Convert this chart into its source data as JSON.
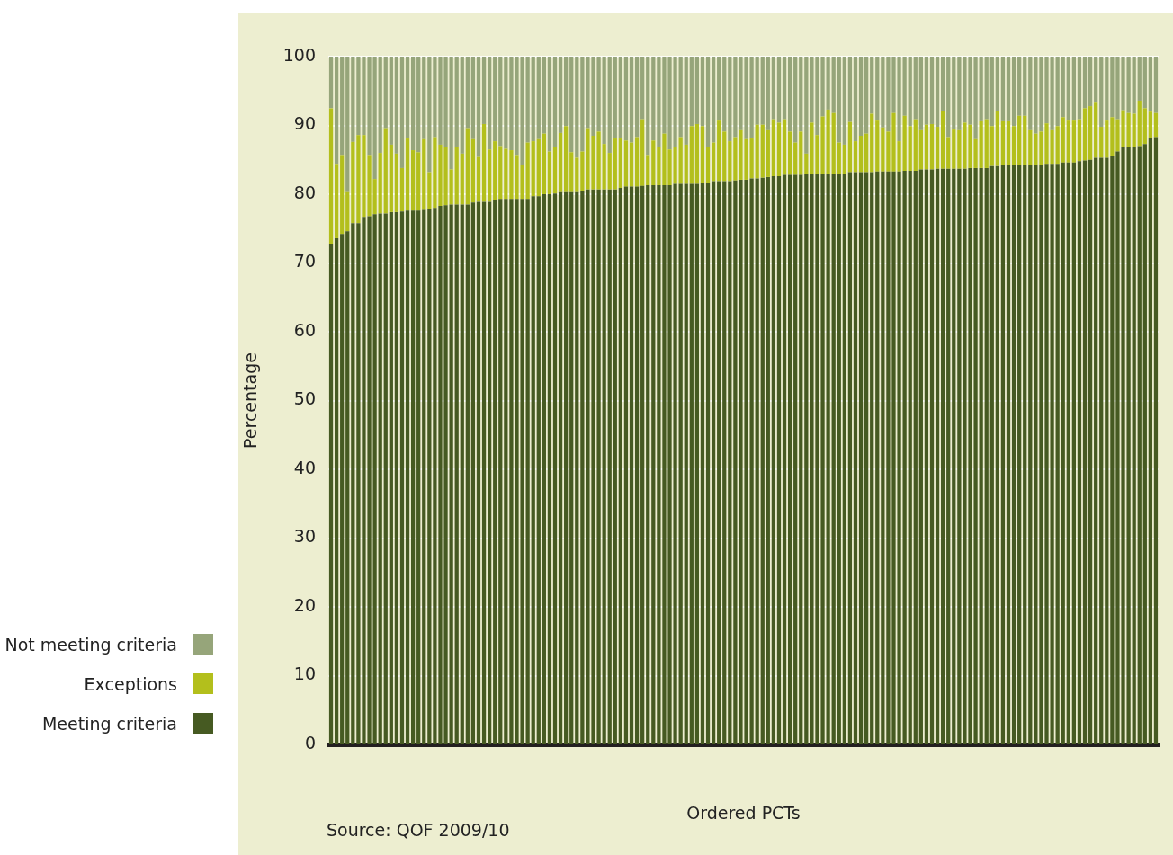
{
  "chart_data": {
    "type": "bar",
    "stacked": true,
    "xlabel": "Ordered PCTs",
    "ylabel": "Percentage",
    "annotations": [
      "Source: QOF 2009/10"
    ],
    "categories": [
      null,
      null,
      null,
      null,
      null,
      null,
      null,
      null,
      null,
      null,
      null,
      null,
      null,
      null,
      null,
      null,
      null,
      null,
      null,
      null,
      null,
      null,
      null,
      null,
      null,
      null,
      null,
      null,
      null,
      null,
      null,
      null,
      null,
      null,
      null,
      null,
      null,
      null,
      null,
      null,
      null,
      null,
      null,
      null,
      null,
      null,
      null,
      null,
      null,
      null,
      null,
      null,
      null,
      null,
      null,
      null,
      null,
      null,
      null,
      null,
      null,
      null,
      null,
      null,
      null,
      null,
      null,
      null,
      null,
      null,
      null,
      null,
      null,
      null,
      null,
      null,
      null,
      null,
      null,
      null,
      null,
      null,
      null,
      null,
      null,
      null,
      null,
      null,
      null,
      null,
      null,
      null,
      null,
      null,
      null,
      null,
      null,
      null,
      null,
      null,
      null,
      null,
      null,
      null,
      null,
      null,
      null,
      null,
      null,
      null,
      null,
      null,
      null,
      null,
      null,
      null,
      null,
      null,
      null,
      null,
      null,
      null,
      null,
      null,
      null,
      null,
      null,
      null,
      null,
      null,
      null,
      null,
      null,
      null,
      null,
      null,
      null,
      null,
      null,
      null,
      null,
      null,
      null,
      null,
      null,
      null,
      null,
      null,
      null,
      null,
      null,
      null
    ],
    "series": [
      {
        "name": "Meeting criteria",
        "color": "#465a22",
        "values": [
          72.8,
          73.6,
          74.2,
          74.6,
          75.8,
          75.8,
          76.7,
          76.8,
          77.1,
          77.2,
          77.2,
          77.4,
          77.4,
          77.5,
          77.6,
          77.6,
          77.6,
          77.7,
          77.9,
          78.0,
          78.3,
          78.4,
          78.5,
          78.5,
          78.5,
          78.5,
          78.8,
          78.9,
          78.9,
          78.9,
          79.2,
          79.3,
          79.3,
          79.3,
          79.3,
          79.3,
          79.3,
          79.7,
          79.7,
          80.0,
          80.0,
          80.1,
          80.3,
          80.3,
          80.3,
          80.3,
          80.4,
          80.7,
          80.7,
          80.7,
          80.7,
          80.7,
          80.7,
          80.9,
          81.1,
          81.1,
          81.1,
          81.2,
          81.3,
          81.3,
          81.3,
          81.3,
          81.3,
          81.5,
          81.5,
          81.5,
          81.5,
          81.5,
          81.7,
          81.7,
          81.9,
          81.9,
          81.9,
          81.9,
          82.0,
          82.1,
          82.1,
          82.3,
          82.3,
          82.4,
          82.5,
          82.6,
          82.6,
          82.8,
          82.8,
          82.8,
          82.8,
          82.9,
          83.0,
          83.0,
          83.0,
          83.0,
          83.0,
          83.0,
          83.0,
          83.2,
          83.2,
          83.2,
          83.2,
          83.2,
          83.3,
          83.3,
          83.3,
          83.3,
          83.3,
          83.4,
          83.4,
          83.4,
          83.6,
          83.6,
          83.6,
          83.7,
          83.7,
          83.7,
          83.7,
          83.7,
          83.7,
          83.8,
          83.8,
          83.8,
          83.8,
          84.1,
          84.1,
          84.2,
          84.2,
          84.2,
          84.2,
          84.2,
          84.2,
          84.2,
          84.2,
          84.4,
          84.4,
          84.4,
          84.6,
          84.6,
          84.6,
          84.8,
          84.9,
          85.0,
          85.3,
          85.3,
          85.3,
          85.6,
          86.2,
          86.8,
          86.8,
          86.8,
          87.0,
          87.3,
          88.2,
          88.3
        ]
      },
      {
        "name": "Exceptions",
        "color": "#b3bf1c",
        "values": [
          19.7,
          10.8,
          11.5,
          5.7,
          11.8,
          12.8,
          11.9,
          8.9,
          5.1,
          8.8,
          12.4,
          9.8,
          8.5,
          6.3,
          10.5,
          8.8,
          8.5,
          10.3,
          5.3,
          10.3,
          8.9,
          8.4,
          5.1,
          8.3,
          7.4,
          11.1,
          9.2,
          6.5,
          11.3,
          7.6,
          8.5,
          7.7,
          7.3,
          7.1,
          6.4,
          5.0,
          8.2,
          8.0,
          8.3,
          8.8,
          6.2,
          6.7,
          8.6,
          9.6,
          5.8,
          5.0,
          5.8,
          8.9,
          7.8,
          8.4,
          6.6,
          5.3,
          7.4,
          7.2,
          6.7,
          6.4,
          7.2,
          9.7,
          4.4,
          6.5,
          5.6,
          7.5,
          5.2,
          5.4,
          6.8,
          5.7,
          8.4,
          8.7,
          8.2,
          5.2,
          5.6,
          8.8,
          7.2,
          5.8,
          6.3,
          7.2,
          5.9,
          5.8,
          7.8,
          7.7,
          6.8,
          8.3,
          7.8,
          8.1,
          6.3,
          4.7,
          6.3,
          3.0,
          7.4,
          5.6,
          8.3,
          9.3,
          8.8,
          4.5,
          4.2,
          7.3,
          4.5,
          5.3,
          5.6,
          8.5,
          7.4,
          6.4,
          5.8,
          8.5,
          4.4,
          8.0,
          6.5,
          7.5,
          5.7,
          6.5,
          6.6,
          6.1,
          8.4,
          4.6,
          5.7,
          5.6,
          6.7,
          6.3,
          4.2,
          6.8,
          7.1,
          5.8,
          8.0,
          6.4,
          6.4,
          5.7,
          7.2,
          7.2,
          5.1,
          4.6,
          4.9,
          5.9,
          4.9,
          5.5,
          6.6,
          6.1,
          6.1,
          6.1,
          7.6,
          7.8,
          8.0,
          4.5,
          5.4,
          5.6,
          4.7,
          5.4,
          5.0,
          4.9,
          6.6,
          5.2,
          3.8,
          3.5
        ]
      },
      {
        "name": "Not meeting criteria",
        "color": "#96a57a",
        "values": [
          7.5,
          15.6,
          14.3,
          19.7,
          12.4,
          11.4,
          11.4,
          14.3,
          17.8,
          14.0,
          10.4,
          12.8,
          14.1,
          16.2,
          11.9,
          13.6,
          13.9,
          12.0,
          16.8,
          11.7,
          12.8,
          13.2,
          16.4,
          13.2,
          14.1,
          10.4,
          12.0,
          14.6,
          9.8,
          13.5,
          12.3,
          13.0,
          13.4,
          13.6,
          14.3,
          15.7,
          12.5,
          12.3,
          12.0,
          11.2,
          13.8,
          13.2,
          11.1,
          10.1,
          13.9,
          14.7,
          13.8,
          10.4,
          11.5,
          10.9,
          12.7,
          14.0,
          11.9,
          11.9,
          12.2,
          12.5,
          11.7,
          9.1,
          14.3,
          12.2,
          13.1,
          11.2,
          13.5,
          13.1,
          11.7,
          12.8,
          10.1,
          9.8,
          10.1,
          13.1,
          12.5,
          9.3,
          10.9,
          12.3,
          11.7,
          10.7,
          12.0,
          11.9,
          9.9,
          9.9,
          10.7,
          9.1,
          9.6,
          9.1,
          10.9,
          12.5,
          10.9,
          14.1,
          9.6,
          11.4,
          8.7,
          7.7,
          8.2,
          12.5,
          12.8,
          9.5,
          12.3,
          11.5,
          11.2,
          8.3,
          9.3,
          10.3,
          10.9,
          8.2,
          12.3,
          8.6,
          10.1,
          9.1,
          10.7,
          9.9,
          9.8,
          10.2,
          7.9,
          11.7,
          10.6,
          10.7,
          9.6,
          9.9,
          12.0,
          9.4,
          9.1,
          10.1,
          7.9,
          9.4,
          9.4,
          10.1,
          8.6,
          8.6,
          10.7,
          11.2,
          10.9,
          9.7,
          10.7,
          10.1,
          8.8,
          9.3,
          9.3,
          9.1,
          7.5,
          7.2,
          6.7,
          10.2,
          9.3,
          8.8,
          9.1,
          7.8,
          8.2,
          8.3,
          6.4,
          7.5,
          8.0,
          8.2
        ]
      }
    ],
    "ylim": [
      0,
      100
    ],
    "yticks": [
      0,
      10,
      20,
      30,
      40,
      50,
      60,
      70,
      80,
      90,
      100
    ],
    "grid": "y",
    "legend": "left",
    "tick_labels": "y"
  }
}
